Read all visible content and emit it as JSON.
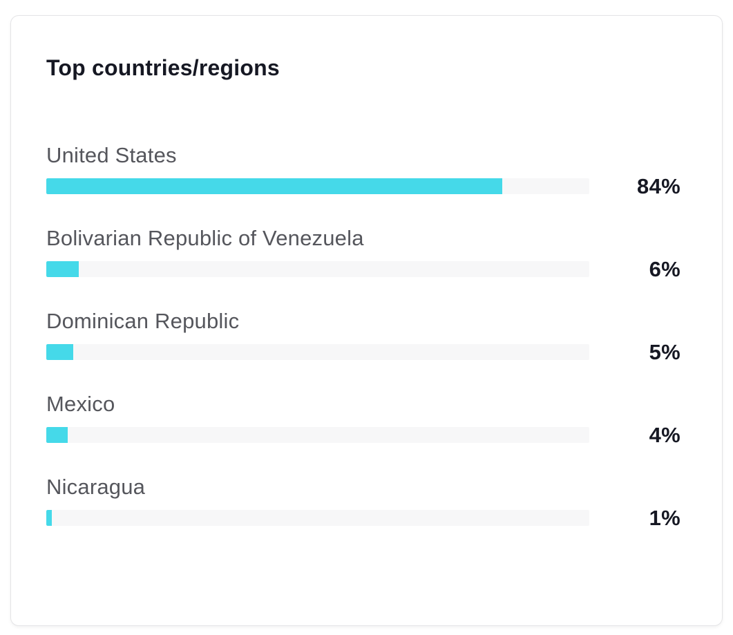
{
  "card": {
    "title": "Top countries/regions"
  },
  "chart_data": {
    "type": "bar",
    "orientation": "horizontal",
    "title": "Top countries/regions",
    "categories": [
      "United States",
      "Bolivarian Republic of Venezuela",
      "Dominican Republic",
      "Mexico",
      "Nicaragua"
    ],
    "values": [
      84,
      6,
      5,
      4,
      1
    ],
    "value_labels": [
      "84%",
      "6%",
      "5%",
      "4%",
      "1%"
    ],
    "value_unit": "%",
    "xlim": [
      0,
      100
    ],
    "grid": false,
    "legend": false,
    "colors": {
      "bar": "#45d9e9",
      "track": "#f7f7f8",
      "label": "#55565c",
      "value": "#161823",
      "card_border": "#e4e4e6",
      "card_background": "#ffffff"
    }
  }
}
